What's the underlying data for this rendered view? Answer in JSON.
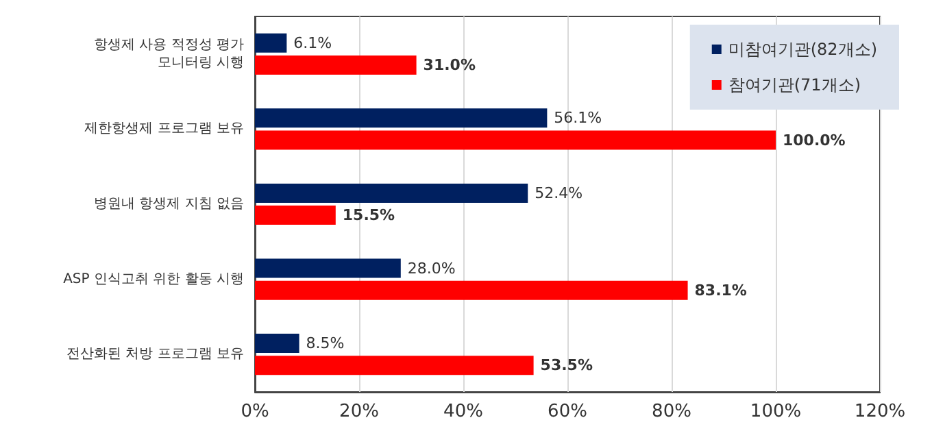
{
  "chart_data": {
    "type": "bar",
    "orientation": "horizontal",
    "categories": [
      "항생제 사용 적정성 평가\n모니터링 시행",
      "제한항생제 프로그램 보유",
      "병원내 항생제 지침 없음",
      "ASP 인식고취 위한 활동 시행",
      "전산화된 처방 프로그램 보유"
    ],
    "series": [
      {
        "name": "미참여기관(82개소)",
        "color": "#002060",
        "values": [
          6.1,
          56.1,
          52.4,
          28.0,
          8.5
        ],
        "value_labels": [
          "6.1%",
          "56.1%",
          "52.4%",
          "28.0%",
          "8.5%"
        ]
      },
      {
        "name": "참여기관(71개소)",
        "color": "#ff0000",
        "values": [
          31.0,
          100.0,
          15.5,
          83.1,
          53.5
        ],
        "value_labels": [
          "31.0%",
          "100.0%",
          "15.5%",
          "83.1%",
          "53.5%"
        ]
      }
    ],
    "xlim": [
      0,
      120
    ],
    "xticks": [
      {
        "value": 0,
        "label": "0%"
      },
      {
        "value": 20,
        "label": "20%"
      },
      {
        "value": 40,
        "label": "40%"
      },
      {
        "value": 60,
        "label": "60%"
      },
      {
        "value": 80,
        "label": "80%"
      },
      {
        "value": 100,
        "label": "100%"
      },
      {
        "value": 120,
        "label": "120%"
      }
    ],
    "grid": "x",
    "legend": "top right"
  }
}
